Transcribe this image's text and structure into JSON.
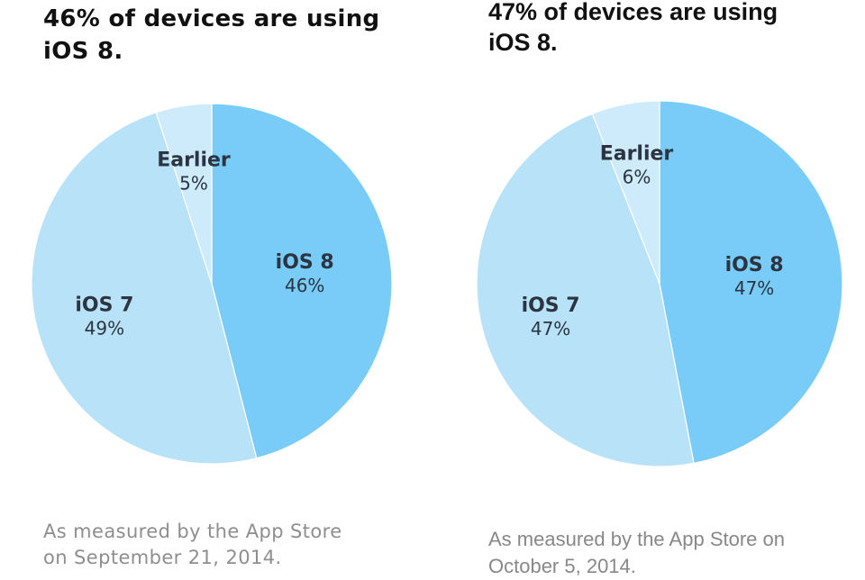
{
  "colors": {
    "ios8": "#79ccf7",
    "ios7": "#b8e2f7",
    "earlier": "#cdebfa",
    "divider": "#ffffff"
  },
  "chart_data": [
    {
      "type": "pie",
      "title_lines": [
        "46% of devices are using",
        "iOS 8."
      ],
      "footnote_lines": [
        "As measured by the App Store",
        "on September 21, 2014."
      ],
      "start_angle_deg": 0,
      "direction": "clockwise",
      "slices": [
        {
          "label": "iOS 8",
          "value": 46,
          "value_label": "46%",
          "color_key": "ios8"
        },
        {
          "label": "iOS 7",
          "value": 49,
          "value_label": "49%",
          "color_key": "ios7"
        },
        {
          "label": "Earlier",
          "value": 5,
          "value_label": "5%",
          "color_key": "earlier"
        }
      ]
    },
    {
      "type": "pie",
      "title_lines": [
        "47% of devices are using",
        "iOS 8."
      ],
      "footnote_lines": [
        "As measured by the App Store on",
        "October 5, 2014."
      ],
      "start_angle_deg": 0,
      "direction": "clockwise",
      "slices": [
        {
          "label": "iOS 8",
          "value": 47,
          "value_label": "47%",
          "color_key": "ios8"
        },
        {
          "label": "iOS 7",
          "value": 47,
          "value_label": "47%",
          "color_key": "ios7"
        },
        {
          "label": "Earlier",
          "value": 6,
          "value_label": "6%",
          "color_key": "earlier"
        }
      ]
    }
  ]
}
